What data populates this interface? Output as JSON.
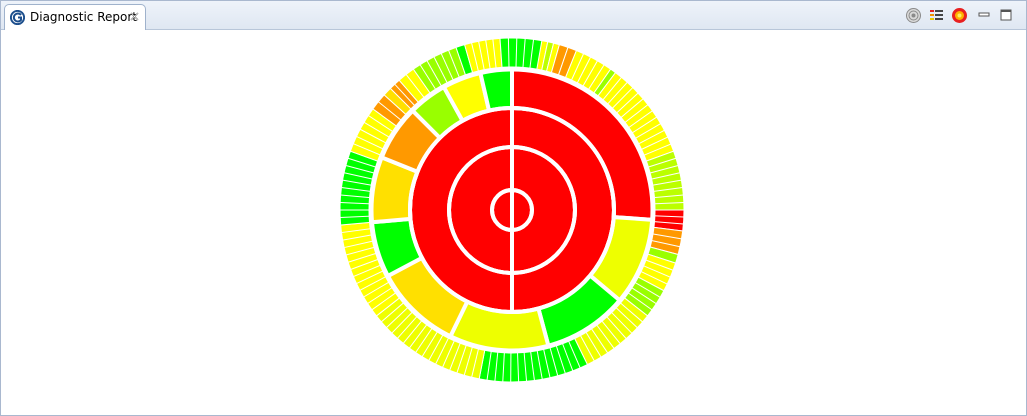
{
  "view": {
    "tab_label": "Diagnostic Report",
    "toolbar": [
      "radar-icon",
      "chart-legend-icon",
      "fire-gear-icon",
      "minimize-icon",
      "maximize-icon"
    ]
  },
  "colors": {
    "red": "#ff0000",
    "orange": "#ff9900",
    "gold": "#ffe000",
    "yellow": "#ffff00",
    "lemon": "#eeff00",
    "lime": "#bbff00",
    "chartreuse": "#99ff00",
    "green": "#00ff00"
  },
  "chart_data": {
    "type": "sunburst",
    "rings": [
      {
        "level": 1,
        "segments": [
          {
            "deg": 360,
            "color": "red"
          }
        ]
      },
      {
        "level": 2,
        "segments": [
          {
            "deg": 360,
            "color": "red"
          }
        ]
      },
      {
        "level": 3,
        "segments": [
          {
            "deg": 360,
            "color": "red"
          }
        ]
      },
      {
        "level": 4,
        "segments": [
          {
            "deg": 94,
            "color": "red"
          },
          {
            "deg": 36,
            "color": "lemon"
          },
          {
            "deg": 35,
            "color": "green"
          },
          {
            "deg": 41,
            "color": "lemon"
          },
          {
            "deg": 36,
            "color": "gold"
          },
          {
            "deg": 23,
            "color": "green"
          },
          {
            "deg": 27,
            "color": "gold"
          },
          {
            "deg": 23,
            "color": "orange"
          },
          {
            "deg": 16,
            "color": "chartreuse"
          },
          {
            "deg": 16,
            "color": "yellow"
          },
          {
            "deg": 13,
            "color": "green"
          }
        ]
      },
      {
        "level": 5,
        "segments": [
          {
            "deg": 2,
            "color": "orange"
          },
          {
            "deg": 10,
            "color": "yellow"
          },
          {
            "deg": 2,
            "color": "lime"
          },
          {
            "deg": 2,
            "color": "yellow"
          },
          {
            "deg": 3,
            "color": "orange"
          },
          {
            "deg": 3,
            "color": "orange"
          },
          {
            "deg": 13,
            "color": "yellow"
          },
          {
            "deg": 2,
            "color": "chartreuse"
          },
          {
            "deg": 33,
            "color": "yellow"
          },
          {
            "deg": 20,
            "color": "lime"
          },
          {
            "deg": 7,
            "color": "red"
          },
          {
            "deg": 8,
            "color": "orange"
          },
          {
            "deg": 3,
            "color": "chartreuse"
          },
          {
            "deg": 10,
            "color": "yellow"
          },
          {
            "deg": 10,
            "color": "chartreuse"
          },
          {
            "deg": 26,
            "color": "lemon"
          },
          {
            "deg": 37,
            "color": "green"
          },
          {
            "deg": 41,
            "color": "lemon"
          },
          {
            "deg": 33,
            "color": "yellow"
          },
          {
            "deg": 25,
            "color": "green"
          },
          {
            "deg": 16,
            "color": "yellow"
          },
          {
            "deg": 6,
            "color": "orange"
          },
          {
            "deg": 3,
            "color": "gold"
          },
          {
            "deg": 4,
            "color": "orange"
          },
          {
            "deg": 6,
            "color": "yellow"
          },
          {
            "deg": 16,
            "color": "chartreuse"
          },
          {
            "deg": 3,
            "color": "green"
          },
          {
            "deg": 12,
            "color": "yellow"
          },
          {
            "deg": 14,
            "color": "green"
          }
        ]
      }
    ]
  }
}
